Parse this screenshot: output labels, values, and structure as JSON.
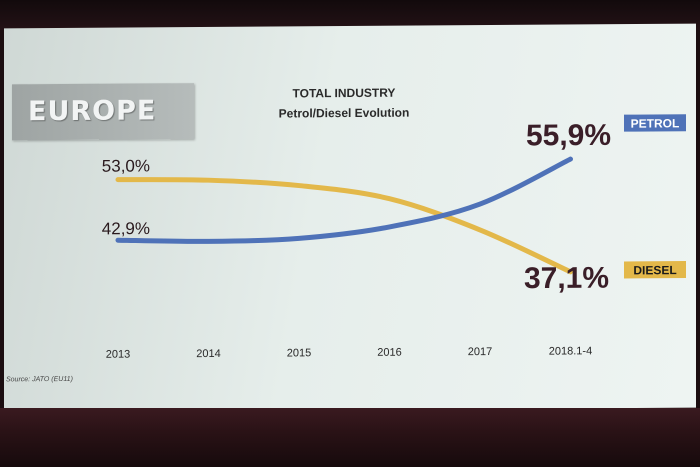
{
  "header": {
    "region": "EUROPE",
    "title": "TOTAL INDUSTRY",
    "subtitle": "Petrol/Diesel Evolution"
  },
  "source": "Source: JATO (EU11)",
  "colors": {
    "petrol": "#4f72b8",
    "diesel": "#e3b84a"
  },
  "chart_data": {
    "type": "line",
    "title": "TOTAL INDUSTRY",
    "subtitle": "Petrol/Diesel Evolution",
    "categories": [
      "2013",
      "2014",
      "2015",
      "2016",
      "2017",
      "2018.1-4"
    ],
    "ylim": [
      30,
      60
    ],
    "grid": false,
    "series": [
      {
        "name": "PETROL",
        "color": "#4f72b8",
        "values": [
          42.9,
          42.6,
          43.0,
          44.8,
          48.5,
          55.9
        ]
      },
      {
        "name": "DIESEL",
        "color": "#e3b84a",
        "values": [
          53.0,
          52.8,
          51.8,
          49.5,
          44.2,
          37.1
        ]
      }
    ],
    "annotations": {
      "start": [
        "53,0%",
        "42,9%"
      ],
      "end_petrol": "55,9%",
      "end_diesel": "37,1%"
    }
  }
}
